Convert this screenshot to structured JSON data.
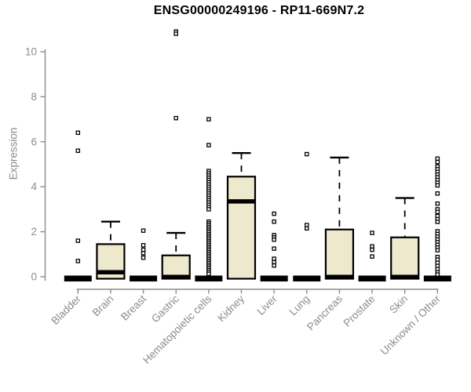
{
  "colors": {
    "background": "#ffffff",
    "box_fill": "#eee8cd",
    "box_border": "#000000",
    "median_color": "#000000",
    "axis": "#8b8b8b",
    "title_color": "#000000",
    "outlier_fill": "#ffffff"
  },
  "chart_data": {
    "type": "boxplot",
    "title": "ENSG00000249196 - RP11-669N7.2",
    "ylabel": "Expression",
    "xlabel": "",
    "ylim": [
      0,
      11.2
    ],
    "yticks": [
      0,
      2,
      4,
      6,
      8,
      10
    ],
    "grid": false,
    "legend": null,
    "categories": [
      "Bladder",
      "Brain",
      "Breast",
      "Gastric",
      "Hematopoietic cells",
      "Kidney",
      "Liver",
      "Lung",
      "Pancreas",
      "Prostate",
      "Skin",
      "Unknown / Other"
    ],
    "series": [
      {
        "name": "Bladder",
        "q1": 0,
        "median": 0,
        "q3": 0,
        "whisker_low": 0,
        "whisker_high": 0,
        "outliers": [
          6.4,
          5.6,
          1.6,
          0.7
        ]
      },
      {
        "name": "Brain",
        "q1": 0,
        "median": 0.2,
        "q3": 1.45,
        "whisker_low": 0,
        "whisker_high": 2.45,
        "outliers": []
      },
      {
        "name": "Breast",
        "q1": 0,
        "median": 0,
        "q3": 0,
        "whisker_low": 0,
        "whisker_high": 0,
        "outliers": [
          2.05,
          1.4,
          1.2,
          1.05,
          0.85
        ]
      },
      {
        "name": "Gastric",
        "q1": 0,
        "median": 0,
        "q3": 0.95,
        "whisker_low": 0,
        "whisker_high": 1.95,
        "outliers": [
          10.9,
          10.8,
          7.05
        ]
      },
      {
        "name": "Hematopoietic cells",
        "q1": 0,
        "median": 0,
        "q3": 0,
        "whisker_low": 0,
        "whisker_high": 0,
        "outliers": [
          7.0,
          5.85,
          4.7,
          4.6,
          4.5,
          4.4,
          4.3,
          4.2,
          4.1,
          4.0,
          3.9,
          3.8,
          3.7,
          3.6,
          3.5,
          3.4,
          3.3,
          3.2,
          3.1,
          3.0,
          2.45,
          2.37,
          2.29,
          2.21,
          2.13,
          2.05,
          1.97,
          1.89,
          1.81,
          1.73,
          1.65,
          1.57,
          1.49,
          1.41,
          1.33,
          1.25,
          1.17,
          1.09,
          1.01,
          0.93,
          0.85,
          0.77,
          0.69,
          0.61,
          0.53,
          0.45,
          0.37,
          0.29,
          0.21,
          0.13
        ]
      },
      {
        "name": "Kidney",
        "q1": 0,
        "median": 3.35,
        "q3": 4.45,
        "whisker_low": 0,
        "whisker_high": 5.5,
        "outliers": []
      },
      {
        "name": "Liver",
        "q1": 0,
        "median": 0,
        "q3": 0,
        "whisker_low": 0,
        "whisker_high": 0,
        "outliers": [
          2.8,
          2.45,
          1.85,
          1.75,
          1.65,
          1.25,
          0.8,
          0.65,
          0.5
        ]
      },
      {
        "name": "Lung",
        "q1": 0,
        "median": 0,
        "q3": 0,
        "whisker_low": 0,
        "whisker_high": 0,
        "outliers": [
          5.45,
          2.3,
          2.15
        ]
      },
      {
        "name": "Pancreas",
        "q1": 0,
        "median": 0,
        "q3": 2.1,
        "whisker_low": 0,
        "whisker_high": 5.3,
        "outliers": []
      },
      {
        "name": "Prostate",
        "q1": 0,
        "median": 0,
        "q3": 0,
        "whisker_low": 0,
        "whisker_high": 0,
        "outliers": [
          1.95,
          1.35,
          1.2,
          0.9
        ]
      },
      {
        "name": "Skin",
        "q1": 0,
        "median": 0,
        "q3": 1.75,
        "whisker_low": 0,
        "whisker_high": 3.5,
        "outliers": []
      },
      {
        "name": "Unknown / Other",
        "q1": 0,
        "median": 0,
        "q3": 0,
        "whisker_low": 0,
        "whisker_high": 0,
        "outliers": [
          5.25,
          5.1,
          4.9,
          4.78,
          4.66,
          4.54,
          4.42,
          4.3,
          4.18,
          4.06,
          3.7,
          3.25,
          3.0,
          2.88,
          2.7,
          2.56,
          2.44,
          2.02,
          1.9,
          1.78,
          1.66,
          1.54,
          1.42,
          1.3,
          1.18,
          0.88,
          0.76,
          0.62,
          0.48,
          0.34,
          0.2,
          0.1
        ]
      }
    ]
  }
}
